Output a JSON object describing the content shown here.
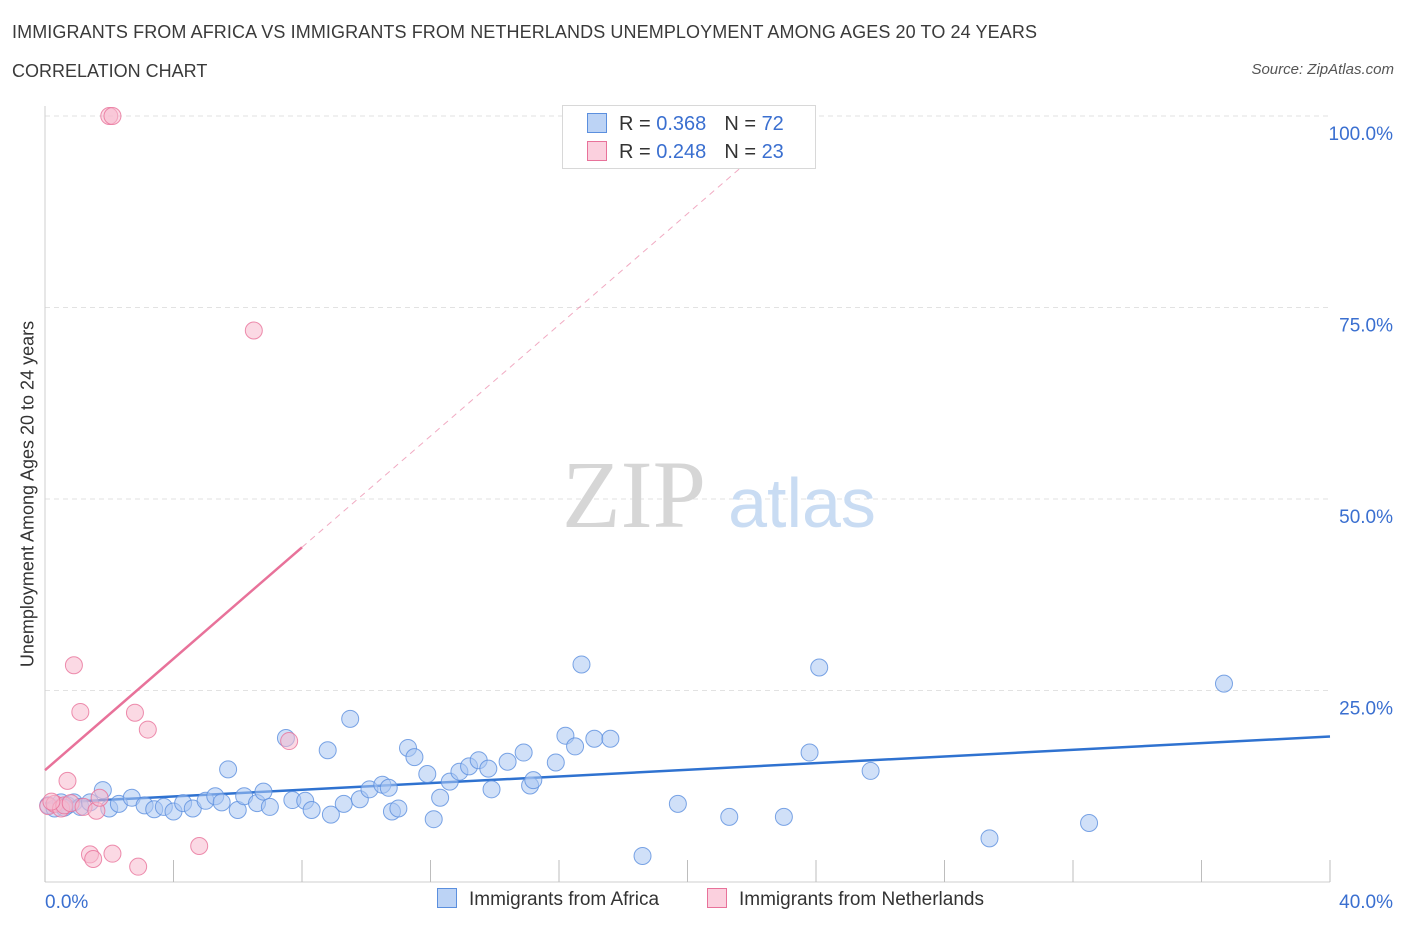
{
  "header": {
    "title": "IMMIGRANTS FROM AFRICA VS IMMIGRANTS FROM NETHERLANDS UNEMPLOYMENT AMONG AGES 20 TO 24 YEARS",
    "subtitle": "CORRELATION CHART",
    "source": "Source: ZipAtlas.com"
  },
  "watermark": {
    "zip": "ZIP",
    "atlas": "atlas"
  },
  "legend": {
    "rows": [
      {
        "r_label": "R = ",
        "r_value": "0.368",
        "n_label": "N = ",
        "n_value": "72"
      },
      {
        "r_label": "R = ",
        "r_value": "0.248",
        "n_label": "N = ",
        "n_value": "23"
      }
    ]
  },
  "colors": {
    "africa": "#5b8fde",
    "africa_fill": "#a9c6f2",
    "netherlands": "#e8729a",
    "netherlands_fill": "#f7b9cd",
    "grid": "#e2e2e2",
    "tick_label": "#3a6fd0"
  },
  "chart_data": {
    "type": "scatter",
    "title": "IMMIGRANTS FROM AFRICA VS IMMIGRANTS FROM NETHERLANDS UNEMPLOYMENT AMONG AGES 20 TO 24 YEARS",
    "xlabel": "",
    "ylabel": "Unemployment Among Ages 20 to 24 years",
    "xlim": [
      0,
      40
    ],
    "ylim": [
      0,
      100
    ],
    "x_tick_labels": [
      "0.0%",
      "40.0%"
    ],
    "y_ticks": [
      25,
      50,
      75,
      100
    ],
    "y_tick_labels": [
      "25.0%",
      "50.0%",
      "75.0%",
      "100.0%"
    ],
    "grid": true,
    "legend_position": "top-center",
    "series": [
      {
        "name": "Immigrants from Africa",
        "R": 0.368,
        "N": 72,
        "trend": {
          "x": [
            0,
            40
          ],
          "y": [
            10.3,
            19.0
          ],
          "style": "solid"
        },
        "points": [
          [
            0.1,
            10.0
          ],
          [
            0.3,
            9.6
          ],
          [
            0.5,
            10.4
          ],
          [
            0.7,
            10.0
          ],
          [
            0.9,
            10.4
          ],
          [
            1.1,
            9.8
          ],
          [
            1.4,
            10.4
          ],
          [
            1.8,
            12.0
          ],
          [
            2.0,
            9.6
          ],
          [
            2.3,
            10.2
          ],
          [
            2.7,
            11.0
          ],
          [
            3.1,
            10.0
          ],
          [
            3.4,
            9.5
          ],
          [
            3.7,
            9.8
          ],
          [
            4.0,
            9.2
          ],
          [
            4.3,
            10.3
          ],
          [
            4.6,
            9.6
          ],
          [
            5.0,
            10.6
          ],
          [
            5.3,
            11.2
          ],
          [
            5.5,
            10.4
          ],
          [
            5.7,
            14.7
          ],
          [
            6.0,
            9.4
          ],
          [
            6.2,
            11.2
          ],
          [
            6.6,
            10.3
          ],
          [
            6.8,
            11.8
          ],
          [
            7.0,
            9.8
          ],
          [
            7.5,
            18.8
          ],
          [
            7.7,
            10.7
          ],
          [
            8.1,
            10.6
          ],
          [
            8.3,
            9.4
          ],
          [
            8.8,
            17.2
          ],
          [
            8.9,
            8.8
          ],
          [
            9.3,
            10.2
          ],
          [
            9.5,
            21.3
          ],
          [
            9.8,
            10.8
          ],
          [
            10.1,
            12.1
          ],
          [
            10.5,
            12.7
          ],
          [
            10.7,
            12.3
          ],
          [
            10.8,
            9.2
          ],
          [
            11.0,
            9.6
          ],
          [
            11.3,
            17.5
          ],
          [
            11.5,
            16.3
          ],
          [
            11.9,
            14.1
          ],
          [
            12.1,
            8.2
          ],
          [
            12.3,
            11.0
          ],
          [
            12.6,
            13.1
          ],
          [
            12.9,
            14.4
          ],
          [
            13.2,
            15.1
          ],
          [
            13.5,
            15.9
          ],
          [
            13.8,
            14.8
          ],
          [
            13.9,
            12.1
          ],
          [
            14.4,
            15.7
          ],
          [
            14.9,
            16.9
          ],
          [
            15.1,
            12.6
          ],
          [
            15.2,
            13.3
          ],
          [
            15.9,
            15.6
          ],
          [
            16.2,
            19.1
          ],
          [
            16.5,
            17.7
          ],
          [
            16.7,
            28.4
          ],
          [
            17.1,
            18.7
          ],
          [
            17.6,
            18.7
          ],
          [
            18.6,
            3.4
          ],
          [
            19.7,
            10.2
          ],
          [
            21.3,
            8.5
          ],
          [
            23.0,
            8.5
          ],
          [
            23.8,
            16.9
          ],
          [
            24.1,
            28.0
          ],
          [
            25.7,
            14.5
          ],
          [
            29.4,
            5.7
          ],
          [
            32.5,
            7.7
          ],
          [
            36.7,
            25.9
          ],
          [
            0.6,
            9.7
          ]
        ]
      },
      {
        "name": "Immigrants from Netherlands",
        "R": 0.248,
        "N": 23,
        "trend": {
          "x": [
            0,
            8.0
          ],
          "y": [
            14.6,
            43.7
          ],
          "style": "solid",
          "extended": {
            "x": [
              8.0,
              22.0
            ],
            "y": [
              43.7,
              94.5
            ],
            "style": "dashed"
          }
        },
        "points": [
          [
            0.1,
            9.9
          ],
          [
            0.3,
            10.2
          ],
          [
            0.5,
            9.6
          ],
          [
            0.6,
            10.0
          ],
          [
            0.7,
            13.2
          ],
          [
            0.8,
            10.3
          ],
          [
            0.9,
            28.3
          ],
          [
            1.1,
            22.2
          ],
          [
            1.2,
            9.8
          ],
          [
            1.4,
            3.6
          ],
          [
            1.5,
            3.0
          ],
          [
            1.6,
            9.3
          ],
          [
            1.7,
            11.0
          ],
          [
            2.0,
            100.0
          ],
          [
            2.1,
            100.0
          ],
          [
            2.1,
            3.7
          ],
          [
            2.8,
            22.1
          ],
          [
            2.9,
            2.0
          ],
          [
            3.2,
            19.9
          ],
          [
            4.8,
            4.7
          ],
          [
            6.5,
            72.0
          ],
          [
            7.6,
            18.4
          ],
          [
            0.2,
            10.5
          ]
        ]
      }
    ]
  },
  "bottom_legend": {
    "africa_label": "Immigrants from Africa",
    "netherlands_label": "Immigrants from Netherlands"
  }
}
